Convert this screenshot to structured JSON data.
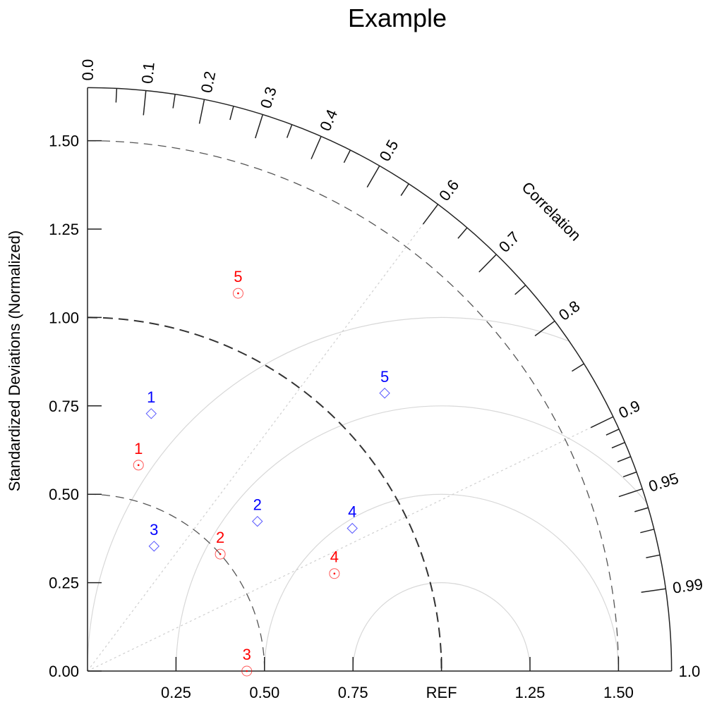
{
  "chart_data": {
    "type": "scatter",
    "subtype": "taylor-diagram",
    "title": "Example",
    "ylabel": "Standardized Deviations (Normalized)",
    "angular_label": "Correlation",
    "std_range": [
      0,
      1.65
    ],
    "x_tick_labels": [
      {
        "value": 0.25,
        "label": "0.25"
      },
      {
        "value": 0.5,
        "label": "0.50"
      },
      {
        "value": 0.75,
        "label": "0.75"
      },
      {
        "value": 1.0,
        "label": "REF"
      },
      {
        "value": 1.25,
        "label": "1.25"
      },
      {
        "value": 1.5,
        "label": "1.50"
      }
    ],
    "y_tick_labels": [
      "0.00",
      "0.25",
      "0.50",
      "0.75",
      "1.00",
      "1.25",
      "1.50"
    ],
    "y_tick_values": [
      0,
      0.25,
      0.5,
      0.75,
      1.0,
      1.25,
      1.5
    ],
    "corr_major_ticks": [
      {
        "value": 0.0,
        "label": "0.0"
      },
      {
        "value": 0.1,
        "label": "0.1"
      },
      {
        "value": 0.2,
        "label": "0.2"
      },
      {
        "value": 0.3,
        "label": "0.3"
      },
      {
        "value": 0.4,
        "label": "0.4"
      },
      {
        "value": 0.5,
        "label": "0.5"
      },
      {
        "value": 0.6,
        "label": "0.6"
      },
      {
        "value": 0.7,
        "label": "0.7"
      },
      {
        "value": 0.8,
        "label": "0.8"
      },
      {
        "value": 0.9,
        "label": "0.9"
      },
      {
        "value": 0.95,
        "label": "0.95"
      },
      {
        "value": 0.99,
        "label": "0.99"
      },
      {
        "value": 1.0,
        "label": "1.0"
      }
    ],
    "corr_minor_ticks": [
      0.05,
      0.15,
      0.25,
      0.35,
      0.45,
      0.55,
      0.65,
      0.75,
      0.85,
      0.91,
      0.92,
      0.93,
      0.94,
      0.96,
      0.97,
      0.98
    ],
    "corr_reference_lines": [
      0.6,
      0.9
    ],
    "std_dashed_arcs": [
      0.5,
      1.0,
      1.5
    ],
    "rms_arcs": [
      0.25,
      0.5,
      0.75,
      1.0
    ],
    "series": [
      {
        "color": "#ff0000",
        "marker": "circle-dot",
        "points": [
          {
            "label": "1",
            "std": 0.6,
            "corr": 0.24
          },
          {
            "label": "2",
            "std": 0.5,
            "corr": 0.75
          },
          {
            "label": "3",
            "std": 0.45,
            "corr": 1.0
          },
          {
            "label": "4",
            "std": 0.75,
            "corr": 0.93
          },
          {
            "label": "5",
            "std": 1.15,
            "corr": 0.37
          }
        ]
      },
      {
        "color": "#0000ff",
        "marker": "diamond",
        "points": [
          {
            "label": "1",
            "std": 0.75,
            "corr": 0.24
          },
          {
            "label": "2",
            "std": 0.64,
            "corr": 0.75
          },
          {
            "label": "3",
            "std": 0.4,
            "corr": 0.47
          },
          {
            "label": "4",
            "std": 0.85,
            "corr": 0.88
          },
          {
            "label": "5",
            "std": 1.15,
            "corr": 0.73
          }
        ]
      }
    ]
  }
}
